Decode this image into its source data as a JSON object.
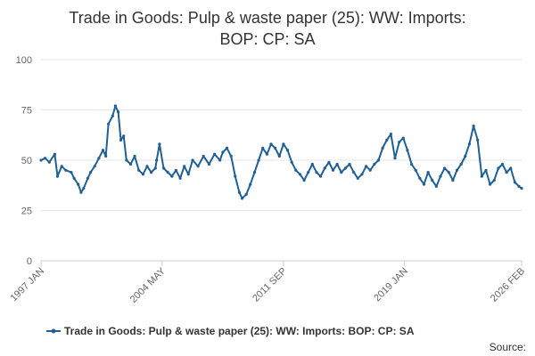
{
  "chart_data": {
    "type": "line",
    "title_lines": [
      "Trade in Goods: Pulp & waste paper (25): WW: Imports:",
      "BOP: CP: SA"
    ],
    "xlabel": "",
    "ylabel": "",
    "ylim": [
      0,
      100
    ],
    "yticks": [
      0,
      25,
      50,
      75,
      100
    ],
    "xlim": [
      1997.0,
      2026.08
    ],
    "xticks": [
      {
        "label": "1997 JAN",
        "value": 1997.0
      },
      {
        "label": "2004 MAY",
        "value": 2004.33
      },
      {
        "label": "2011 SEP",
        "value": 2011.67
      },
      {
        "label": "2019 JAN",
        "value": 2019.0
      },
      {
        "label": "2026 FEB",
        "value": 2026.08
      }
    ],
    "grid": true,
    "legend": "bottom",
    "series": [
      {
        "name": "Trade in Goods: Pulp & waste paper (25): WW: Imports: BOP: CP: SA",
        "color": "#206095",
        "points": [
          [
            1997.0,
            50
          ],
          [
            1997.25,
            51
          ],
          [
            1997.5,
            49
          ],
          [
            1997.83,
            53
          ],
          [
            1998.0,
            42
          ],
          [
            1998.25,
            47
          ],
          [
            1998.5,
            45
          ],
          [
            1998.83,
            44
          ],
          [
            1999.0,
            41
          ],
          [
            1999.25,
            38
          ],
          [
            1999.42,
            34
          ],
          [
            1999.58,
            36
          ],
          [
            1999.83,
            41
          ],
          [
            2000.0,
            44
          ],
          [
            2000.25,
            47
          ],
          [
            2000.5,
            51
          ],
          [
            2000.75,
            55
          ],
          [
            2000.92,
            52
          ],
          [
            2001.08,
            68
          ],
          [
            2001.33,
            72
          ],
          [
            2001.5,
            77
          ],
          [
            2001.67,
            74
          ],
          [
            2001.83,
            60
          ],
          [
            2002.0,
            62
          ],
          [
            2002.17,
            50
          ],
          [
            2002.42,
            48
          ],
          [
            2002.67,
            52
          ],
          [
            2002.92,
            45
          ],
          [
            2003.17,
            43
          ],
          [
            2003.42,
            47
          ],
          [
            2003.67,
            44
          ],
          [
            2003.92,
            46
          ],
          [
            2004.0,
            50
          ],
          [
            2004.17,
            58
          ],
          [
            2004.42,
            46
          ],
          [
            2004.67,
            44
          ],
          [
            2004.92,
            42
          ],
          [
            2005.17,
            45
          ],
          [
            2005.42,
            41
          ],
          [
            2005.67,
            47
          ],
          [
            2005.92,
            43
          ],
          [
            2006.17,
            50
          ],
          [
            2006.5,
            47
          ],
          [
            2006.83,
            52
          ],
          [
            2007.17,
            48
          ],
          [
            2007.5,
            53
          ],
          [
            2007.83,
            50
          ],
          [
            2008.0,
            54
          ],
          [
            2008.25,
            56
          ],
          [
            2008.5,
            52
          ],
          [
            2008.75,
            42
          ],
          [
            2009.0,
            34
          ],
          [
            2009.17,
            31
          ],
          [
            2009.42,
            33
          ],
          [
            2009.67,
            38
          ],
          [
            2009.92,
            44
          ],
          [
            2010.17,
            50
          ],
          [
            2010.42,
            56
          ],
          [
            2010.67,
            53
          ],
          [
            2010.92,
            58
          ],
          [
            2011.17,
            56
          ],
          [
            2011.42,
            52
          ],
          [
            2011.67,
            58
          ],
          [
            2011.92,
            55
          ],
          [
            2012.17,
            49
          ],
          [
            2012.42,
            45
          ],
          [
            2012.67,
            43
          ],
          [
            2012.92,
            40
          ],
          [
            2013.17,
            44
          ],
          [
            2013.42,
            48
          ],
          [
            2013.67,
            44
          ],
          [
            2013.92,
            42
          ],
          [
            2014.17,
            46
          ],
          [
            2014.42,
            49
          ],
          [
            2014.67,
            45
          ],
          [
            2014.92,
            48
          ],
          [
            2015.17,
            44
          ],
          [
            2015.42,
            46
          ],
          [
            2015.67,
            48
          ],
          [
            2015.92,
            44
          ],
          [
            2016.17,
            41
          ],
          [
            2016.42,
            43
          ],
          [
            2016.67,
            47
          ],
          [
            2016.92,
            45
          ],
          [
            2017.17,
            48
          ],
          [
            2017.42,
            50
          ],
          [
            2017.67,
            56
          ],
          [
            2017.92,
            60
          ],
          [
            2018.17,
            63
          ],
          [
            2018.42,
            51
          ],
          [
            2018.67,
            59
          ],
          [
            2018.92,
            61
          ],
          [
            2019.17,
            55
          ],
          [
            2019.42,
            48
          ],
          [
            2019.67,
            45
          ],
          [
            2019.92,
            41
          ],
          [
            2020.17,
            38
          ],
          [
            2020.42,
            44
          ],
          [
            2020.67,
            40
          ],
          [
            2020.92,
            37
          ],
          [
            2021.17,
            42
          ],
          [
            2021.42,
            46
          ],
          [
            2021.67,
            44
          ],
          [
            2021.92,
            40
          ],
          [
            2022.17,
            45
          ],
          [
            2022.42,
            48
          ],
          [
            2022.67,
            52
          ],
          [
            2022.92,
            58
          ],
          [
            2023.17,
            67
          ],
          [
            2023.42,
            60
          ],
          [
            2023.67,
            42
          ],
          [
            2023.92,
            45
          ],
          [
            2024.17,
            38
          ],
          [
            2024.42,
            40
          ],
          [
            2024.67,
            46
          ],
          [
            2024.92,
            48
          ],
          [
            2025.17,
            44
          ],
          [
            2025.42,
            46
          ],
          [
            2025.67,
            39
          ],
          [
            2025.92,
            37
          ],
          [
            2026.08,
            36
          ]
        ]
      }
    ],
    "source_label": "Source:"
  }
}
